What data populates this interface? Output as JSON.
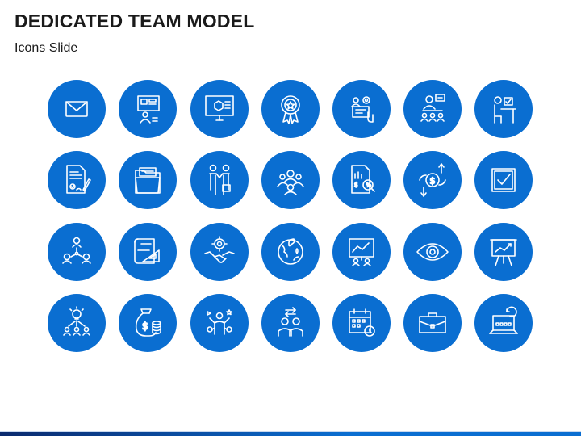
{
  "slide": {
    "title": "DEDICATED TEAM MODEL",
    "subtitle": "Icons Slide"
  },
  "colors": {
    "circle": "#0a6ed1",
    "icon_stroke": "#ffffff",
    "title_text": "#1a1a1a"
  },
  "icons": [
    "envelope-icon",
    "presentation-screen-team-icon",
    "monitor-cube-icon",
    "award-badge-icon",
    "computer-settings-user-icon",
    "presenter-audience-icon",
    "worker-desk-icon",
    "contract-sign-icon",
    "folder-documents-icon",
    "business-handshake-people-icon",
    "team-group-icon",
    "financial-analysis-icon",
    "money-exchange-icon",
    "checkbox-icon",
    "team-network-icon",
    "blueprint-drafting-icon",
    "handshake-gear-icon",
    "global-locations-icon",
    "monitor-team-icon",
    "eye-icon",
    "presentation-chart-icon",
    "idea-team-icon",
    "money-bag-coins-icon",
    "multitasking-person-icon",
    "people-exchange-icon",
    "calendar-clock-icon",
    "briefcase-icon",
    "laptop-refresh-icon"
  ]
}
